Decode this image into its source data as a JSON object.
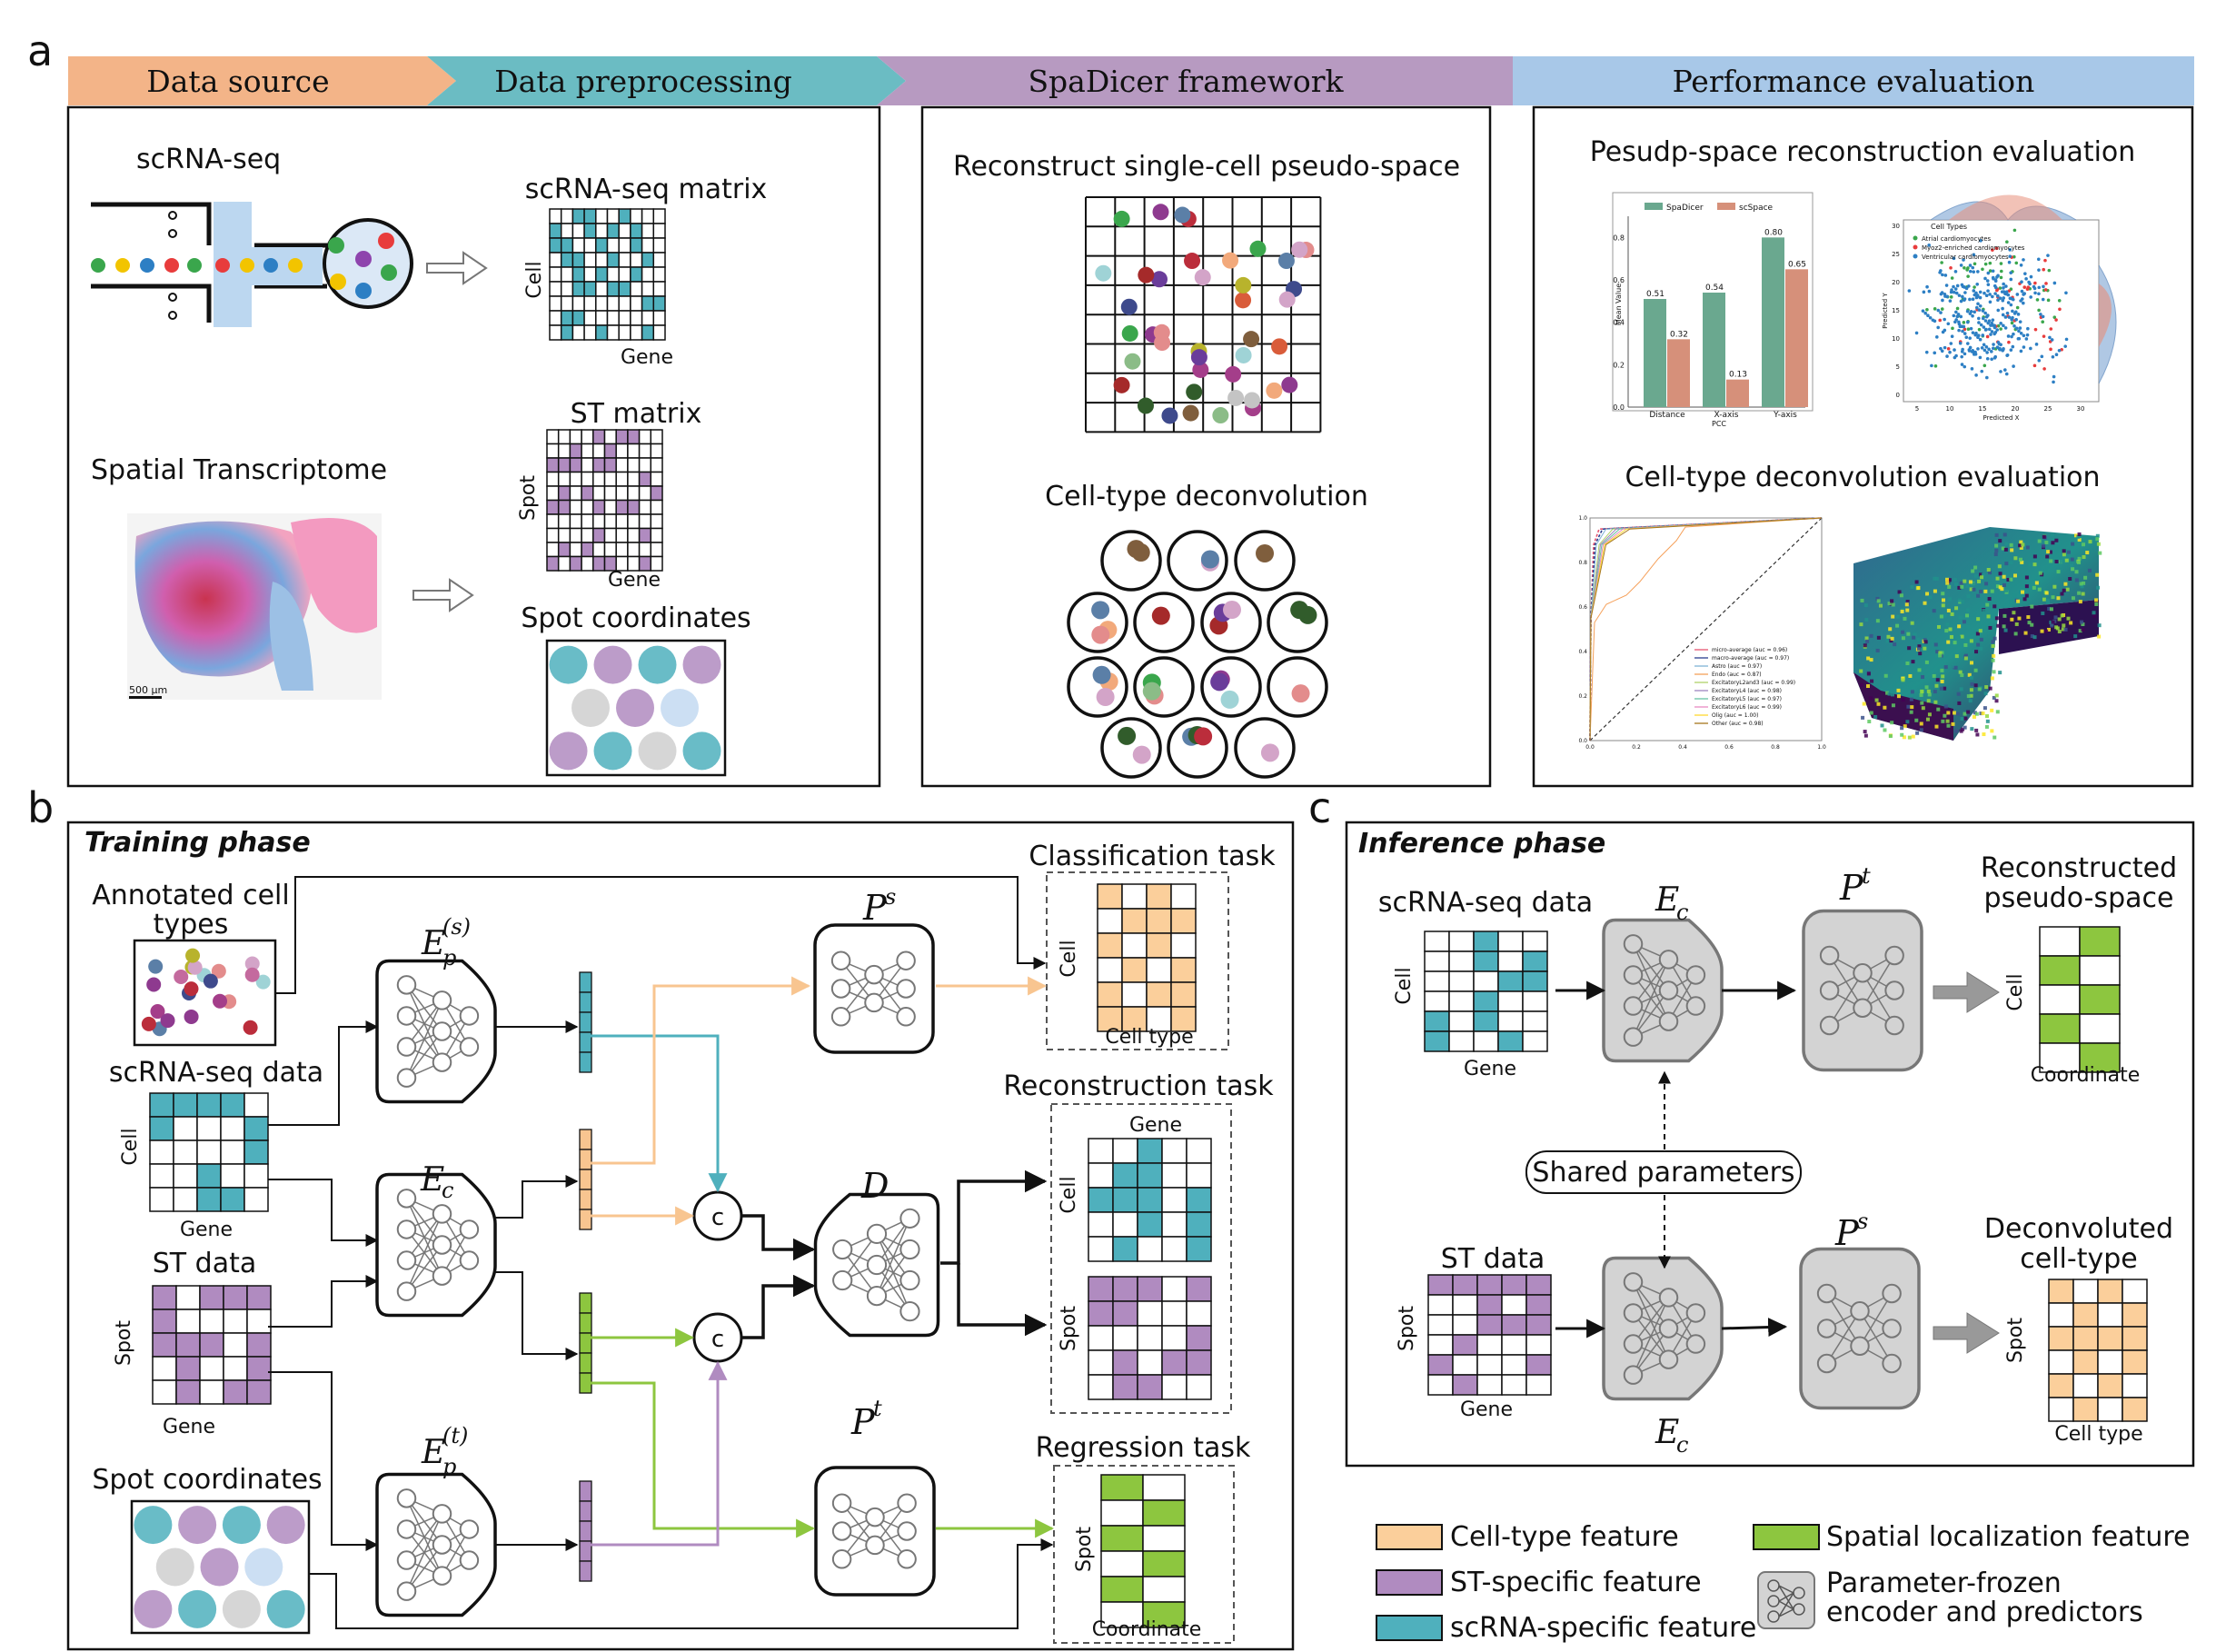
{
  "panel_letters": {
    "a": "a",
    "b": "b",
    "c": "c"
  },
  "banner": {
    "stage1": "Data source",
    "stage2": "Data preprocessing",
    "stage3": "SpaDicer framework",
    "stage4": "Performance evaluation"
  },
  "colors": {
    "stage1": "#f3b488",
    "stage2": "#6bbcc3",
    "stage3": "#b79ac1",
    "stage4": "#a8c8e8",
    "teal": "#4fb0bd",
    "purple": "#b08bc0",
    "green": "#8dc63f",
    "orange": "#fbcf9b",
    "gray": "#cfcfcf"
  },
  "panel_a": {
    "scrna_title": "scRNA-seq",
    "st_title": "Spatial Transcriptome",
    "scale_bar": "500 µm",
    "scrna_matrix_title": "scRNA-seq matrix",
    "cell_label": "Cell",
    "gene_label": "Gene",
    "st_matrix_title": "ST matrix",
    "spot_label": "Spot",
    "spot_coord_title": "Spot coordinates",
    "reconstruct_title": "Reconstruct single-cell pseudo-space",
    "deconv_title": "Cell-type deconvolution",
    "eval_recon_title": "Pesudp-space reconstruction evaluation",
    "eval_deconv_title": "Cell-type deconvolution evaluation"
  },
  "mini_bar": {
    "legend": [
      "SpaDicer",
      "scSpace"
    ],
    "ylabel": "Mean Value",
    "xlabel": "PCC",
    "categories": [
      "Distance",
      "X-axis",
      "Y-axis"
    ],
    "spadicer": [
      0.51,
      0.54,
      0.8
    ],
    "scspace": [
      0.32,
      0.13,
      0.65
    ],
    "labels_spadicer": [
      "0.51",
      "0.54",
      "0.80"
    ],
    "labels_scspace": [
      "0.32",
      "0.13",
      "0.65"
    ],
    "yticks": [
      "0.0",
      "0.2",
      "0.4",
      "0.6",
      "0.8"
    ]
  },
  "mini_scatter": {
    "legend_title": "Cell Types",
    "legend": [
      "Atrial cardiomyocytes",
      "Myoz2-enriched cardiomyocytes",
      "Ventricular cardiomyocytes"
    ],
    "xlabel": "Predicted X",
    "ylabel": "Predicted Y",
    "xticks": [
      "5",
      "10",
      "15",
      "20",
      "25",
      "30"
    ],
    "yticks": [
      "0",
      "5",
      "10",
      "15",
      "20",
      "25",
      "30"
    ]
  },
  "mini_roc": {
    "legend": [
      "micro-average (auc = 0.96)",
      "macro-average (auc = 0.97)",
      "Astro (auc = 0.97)",
      "Endo (auc = 0.87)",
      "ExcitatoryL2and3 (auc = 0.99)",
      "ExcitatoryL4 (auc = 0.98)",
      "ExcitatoryL5 (auc = 0.97)",
      "ExcitatoryL6 (auc = 0.99)",
      "Olig (auc = 1.00)",
      "Other (auc = 0.98)"
    ],
    "ticks": [
      "0.0",
      "0.2",
      "0.4",
      "0.6",
      "0.8",
      "1.0"
    ]
  },
  "panel_b": {
    "title": "Training phase",
    "annotated_line1": "Annotated cell",
    "annotated_line2": "types",
    "scrna_data": "scRNA-seq data",
    "cell_label": "Cell",
    "gene_label": "Gene",
    "st_data": "ST data",
    "spot_label": "Spot",
    "spot_coords": "Spot coordinates",
    "classification_task": "Classification task",
    "cell_type_label": "Cell type",
    "reconstruction_task": "Reconstruction task",
    "regression_task": "Regression task",
    "coordinate_label": "Coordinate",
    "concat": "c"
  },
  "panel_c": {
    "title": "Inference phase",
    "scrna_data": "scRNA-seq data",
    "cell_label": "Cell",
    "gene_label": "Gene",
    "shared_params": "Shared parameters",
    "st_data": "ST data",
    "spot_label": "Spot",
    "recon_line1": "Reconstructed",
    "recon_line2": "pseudo-space",
    "coordinate_label": "Coordinate",
    "deconv_line1": "Deconvoluted",
    "deconv_line2": "cell-type",
    "cell_type_label": "Cell type"
  },
  "legend": {
    "cell_type_feature": "Cell-type feature",
    "st_specific_feature": "ST-specific feature",
    "scrna_specific_feature": "scRNA-specific feature",
    "spatial_feature": "Spatial localization feature",
    "frozen_line1": "Parameter-frozen",
    "frozen_line2": "encoder and predictors"
  }
}
